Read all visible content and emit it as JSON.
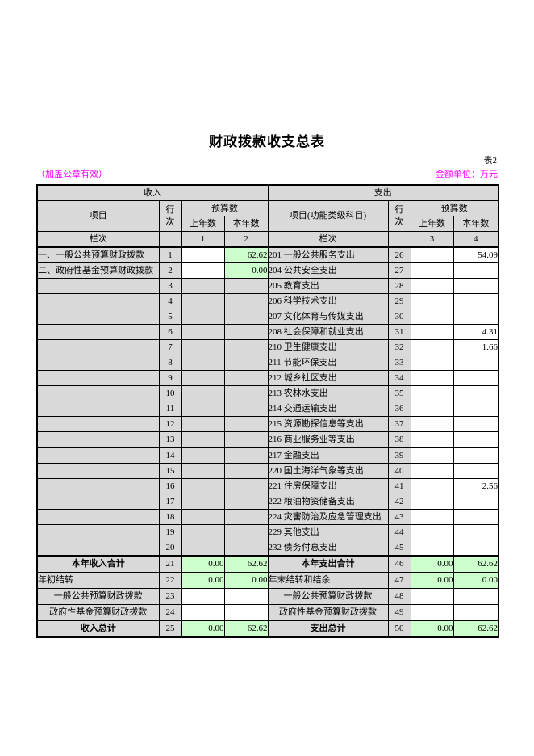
{
  "page": {
    "title": "财政拨款收支总表",
    "table_number": "表2",
    "seal_note": "（加盖公章有效）",
    "unit_note": "金额单位：万元"
  },
  "colors": {
    "note_pink": "#FF00FF",
    "cell_gray": "#D9D9D9",
    "cell_green": "#CCFFCC",
    "border_black": "#000000"
  },
  "table": {
    "income_section": "收入",
    "expense_section": "支出",
    "income_item_header": "项目",
    "expense_item_header": "项目(功能类级科目)",
    "line_header": "行次",
    "budget_header": "预算数",
    "prev_year_header": "上年数",
    "curr_year_header": "本年数",
    "index_row_label": "栏次",
    "index_numbers": [
      "1",
      "2",
      "3",
      "4"
    ],
    "rows": [
      {
        "l": [
          "一、一般公共预算财政拨款",
          "1",
          "",
          "62.62"
        ],
        "lb": [
          "w",
          "g"
        ],
        "r": [
          "201 一般公共服务支出",
          "26",
          "",
          "54.09"
        ],
        "rb": [
          "w",
          "w"
        ]
      },
      {
        "l": [
          "二、政府性基金预算财政拨款",
          "2",
          "",
          "0.00"
        ],
        "lb": [
          "w",
          "g"
        ],
        "r": [
          "204 公共安全支出",
          "27",
          "",
          ""
        ],
        "rb": [
          "w",
          "w"
        ]
      },
      {
        "l": [
          "",
          "3",
          "",
          ""
        ],
        "lb": [
          "y",
          "y"
        ],
        "r": [
          "205 教育支出",
          "28",
          "",
          ""
        ],
        "rb": [
          "w",
          "w"
        ]
      },
      {
        "l": [
          "",
          "4",
          "",
          ""
        ],
        "lb": [
          "y",
          "y"
        ],
        "r": [
          "206 科学技术支出",
          "29",
          "",
          ""
        ],
        "rb": [
          "w",
          "w"
        ]
      },
      {
        "l": [
          "",
          "5",
          "",
          ""
        ],
        "lb": [
          "y",
          "y"
        ],
        "r": [
          "207 文化体育与传媒支出",
          "30",
          "",
          ""
        ],
        "rb": [
          "w",
          "w"
        ]
      },
      {
        "l": [
          "",
          "6",
          "",
          ""
        ],
        "lb": [
          "y",
          "y"
        ],
        "r": [
          "208 社会保障和就业支出",
          "31",
          "",
          "4.31"
        ],
        "rb": [
          "w",
          "w"
        ]
      },
      {
        "l": [
          "",
          "7",
          "",
          ""
        ],
        "lb": [
          "y",
          "y"
        ],
        "r": [
          "210 卫生健康支出",
          "32",
          "",
          "1.66"
        ],
        "rb": [
          "w",
          "w"
        ]
      },
      {
        "l": [
          "",
          "8",
          "",
          ""
        ],
        "lb": [
          "y",
          "y"
        ],
        "r": [
          "211 节能环保支出",
          "33",
          "",
          ""
        ],
        "rb": [
          "w",
          "w"
        ]
      },
      {
        "l": [
          "",
          "9",
          "",
          ""
        ],
        "lb": [
          "y",
          "y"
        ],
        "r": [
          "212 城乡社区支出",
          "34",
          "",
          ""
        ],
        "rb": [
          "w",
          "w"
        ]
      },
      {
        "l": [
          "",
          "10",
          "",
          ""
        ],
        "lb": [
          "y",
          "y"
        ],
        "r": [
          "213 农林水支出",
          "35",
          "",
          ""
        ],
        "rb": [
          "w",
          "w"
        ]
      },
      {
        "l": [
          "",
          "11",
          "",
          ""
        ],
        "lb": [
          "y",
          "y"
        ],
        "r": [
          "214 交通运输支出",
          "36",
          "",
          ""
        ],
        "rb": [
          "w",
          "w"
        ]
      },
      {
        "l": [
          "",
          "12",
          "",
          ""
        ],
        "lb": [
          "y",
          "y"
        ],
        "r": [
          "215 资源勘探信息等支出",
          "37",
          "",
          ""
        ],
        "rb": [
          "w",
          "w"
        ]
      },
      {
        "l": [
          "",
          "13",
          "",
          ""
        ],
        "lb": [
          "y",
          "y"
        ],
        "r": [
          "216 商业服务业等支出",
          "38",
          "",
          ""
        ],
        "rb": [
          "w",
          "w"
        ]
      },
      {
        "l": [
          "",
          "14",
          "",
          ""
        ],
        "lb": [
          "y",
          "y"
        ],
        "r": [
          "217 金融支出",
          "39",
          "",
          ""
        ],
        "rb": [
          "w",
          "w"
        ],
        "tt": true
      },
      {
        "l": [
          "",
          "15",
          "",
          ""
        ],
        "lb": [
          "y",
          "y"
        ],
        "r": [
          "220 国土海洋气象等支出",
          "40",
          "",
          ""
        ],
        "rb": [
          "w",
          "w"
        ]
      },
      {
        "l": [
          "",
          "16",
          "",
          ""
        ],
        "lb": [
          "y",
          "y"
        ],
        "r": [
          "221 住房保障支出",
          "41",
          "",
          "2.56"
        ],
        "rb": [
          "w",
          "w"
        ]
      },
      {
        "l": [
          "",
          "17",
          "",
          ""
        ],
        "lb": [
          "y",
          "y"
        ],
        "r": [
          "222 粮油物资储备支出",
          "42",
          "",
          ""
        ],
        "rb": [
          "w",
          "w"
        ]
      },
      {
        "l": [
          "",
          "18",
          "",
          ""
        ],
        "lb": [
          "y",
          "y"
        ],
        "r": [
          "224 灾害防治及应急管理支出",
          "43",
          "",
          ""
        ],
        "rb": [
          "w",
          "w"
        ]
      },
      {
        "l": [
          "",
          "19",
          "",
          ""
        ],
        "lb": [
          "y",
          "y"
        ],
        "r": [
          "229 其他支出",
          "44",
          "",
          ""
        ],
        "rb": [
          "w",
          "w"
        ]
      },
      {
        "l": [
          "",
          "20",
          "",
          ""
        ],
        "lb": [
          "y",
          "y"
        ],
        "r": [
          "232 债务付息支出",
          "45",
          "",
          ""
        ],
        "rb": [
          "w",
          "w"
        ]
      },
      {
        "l": [
          "本年收入合计",
          "21",
          "0.00",
          "62.62"
        ],
        "la": "center",
        "lb": [
          "g",
          "g"
        ],
        "r": [
          "本年支出合计",
          "46",
          "0.00",
          "62.62"
        ],
        "ra": "center",
        "rb": [
          "g",
          "g"
        ],
        "bold": true,
        "tt": true
      },
      {
        "l": [
          "年初结转",
          "22",
          "0.00",
          "0.00"
        ],
        "lb": [
          "g",
          "g"
        ],
        "r": [
          "年末结转和结余",
          "47",
          "0.00",
          "0.00"
        ],
        "rb": [
          "g",
          "g"
        ]
      },
      {
        "l": [
          "一般公共预算财政拨款",
          "23",
          "",
          ""
        ],
        "la": "center",
        "lb": [
          "w",
          "w"
        ],
        "r": [
          "一般公共预算财政拨款",
          "48",
          "",
          ""
        ],
        "ra": "center",
        "rb": [
          "w",
          "w"
        ]
      },
      {
        "l": [
          "政府性基金预算财政拨款",
          "24",
          "",
          ""
        ],
        "la": "center",
        "lb": [
          "w",
          "w"
        ],
        "r": [
          "政府性基金预算财政拨款",
          "49",
          "",
          ""
        ],
        "ra": "center",
        "rb": [
          "w",
          "w"
        ]
      },
      {
        "l": [
          "收入总计",
          "25",
          "0.00",
          "62.62"
        ],
        "la": "center",
        "lb": [
          "g",
          "g"
        ],
        "r": [
          "支出总计",
          "50",
          "0.00",
          "62.62"
        ],
        "ra": "center",
        "rb": [
          "g",
          "g"
        ],
        "bold": true
      }
    ]
  }
}
